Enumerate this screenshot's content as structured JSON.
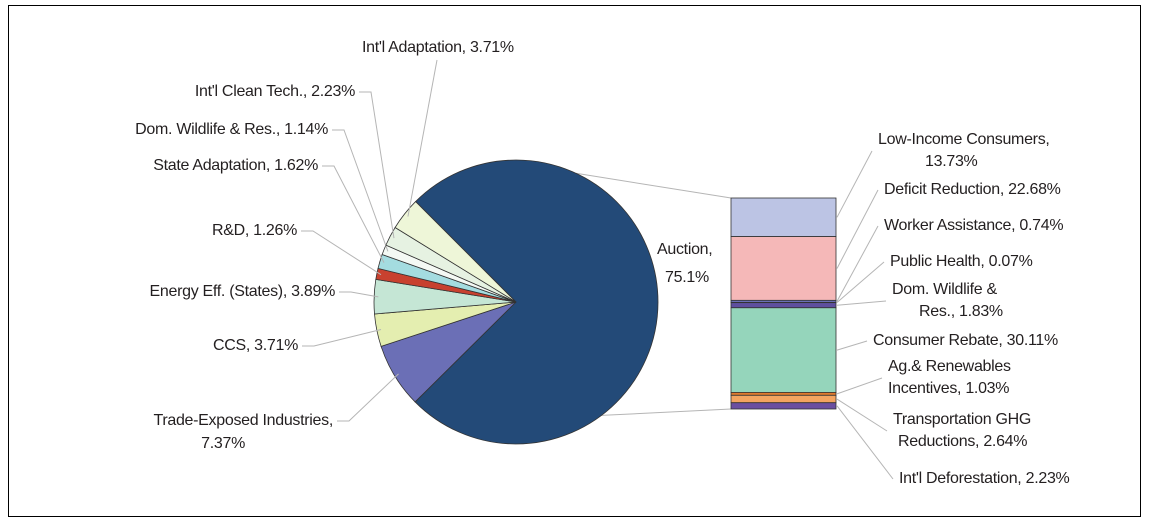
{
  "chart_data": {
    "type": "pie-of-bar",
    "pie": {
      "labels": [
        [
          "Auction,",
          "75.1%"
        ],
        [
          "Trade-Exposed Industries,",
          "7.37%"
        ],
        [
          "CCS, 3.71%"
        ],
        [
          "Energy Eff. (States), 3.89%"
        ],
        [
          "R&D, 1.26%"
        ],
        [
          "State Adaptation, 1.62%"
        ],
        [
          "Dom. Wildlife & Res., 1.14%"
        ],
        [
          "Int'l Clean Tech., 2.23%"
        ],
        [
          "Int'l Adaptation, 3.71%"
        ]
      ],
      "values": [
        75.1,
        7.37,
        3.71,
        3.89,
        1.26,
        1.62,
        1.14,
        2.23,
        3.71
      ],
      "colors": [
        "#234a78",
        "#6b6fb6",
        "#e4eeb0",
        "#c5e6d5",
        "#c8412f",
        "#a4dce0",
        "#f4f9f4",
        "#e6f2e2",
        "#eef6d8"
      ]
    },
    "bar": {
      "labels": [
        [
          "Low-Income Consumers,",
          "13.73%"
        ],
        [
          "Deficit Reduction, 22.68%"
        ],
        [
          "Worker Assistance, 0.74%"
        ],
        [
          "Public Health, 0.07%"
        ],
        [
          "Dom. Wildlife &",
          "Res., 1.83%"
        ],
        [
          "Consumer Rebate, 30.11%"
        ],
        [
          "Ag.& Renewables",
          "Incentives, 1.03%"
        ],
        [
          "Transportation GHG",
          "Reductions, 2.64%"
        ],
        [
          "Int'l Deforestation, 2.23%"
        ]
      ],
      "values": [
        13.73,
        22.68,
        0.74,
        0.07,
        1.83,
        30.11,
        1.03,
        2.64,
        2.23
      ],
      "colors": [
        "#bcc4e4",
        "#f5b8b8",
        "#6b6fb6",
        "#c8412f",
        "#5e4f9e",
        "#95d5bb",
        "#e07a2e",
        "#f4a460",
        "#6b4fa0"
      ]
    }
  }
}
